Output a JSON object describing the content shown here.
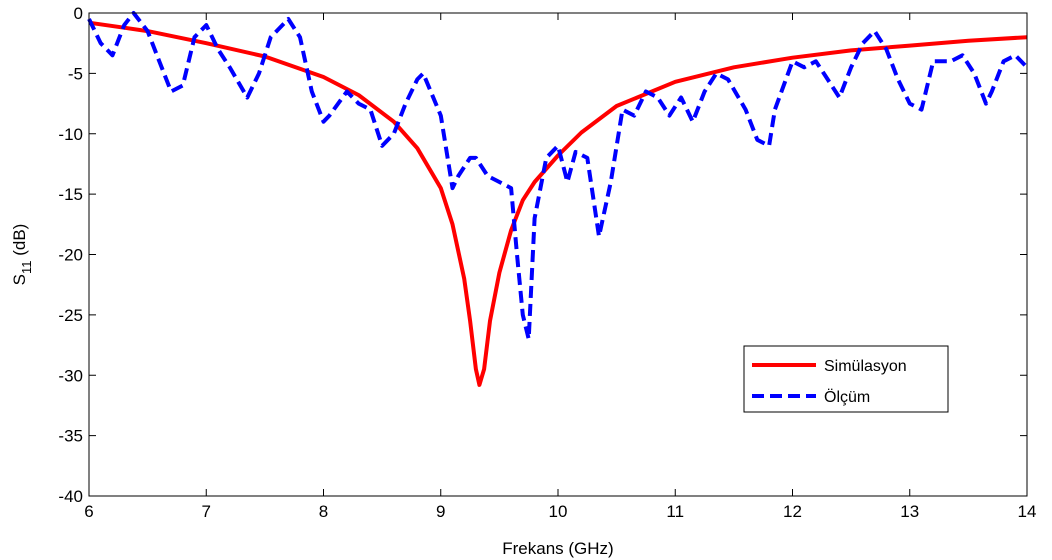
{
  "chart_data": {
    "type": "line",
    "xlabel": "Frekans (GHz)",
    "ylabel_main": "S",
    "ylabel_sub": "11",
    "ylabel_unit": " (dB)",
    "xlim": [
      6,
      14
    ],
    "ylim": [
      -40,
      0
    ],
    "xticks": [
      6,
      7,
      8,
      9,
      10,
      11,
      12,
      13,
      14
    ],
    "yticks": [
      0,
      -5,
      -10,
      -15,
      -20,
      -25,
      -30,
      -35,
      -40
    ],
    "grid": false,
    "legend_position": "lower-right",
    "series": [
      {
        "name": "Simülasyon",
        "color": "#ff0000",
        "style": "solid",
        "x": [
          6.0,
          6.5,
          7.0,
          7.5,
          8.0,
          8.3,
          8.6,
          8.8,
          9.0,
          9.1,
          9.2,
          9.25,
          9.3,
          9.33,
          9.37,
          9.42,
          9.5,
          9.6,
          9.7,
          9.8,
          10.0,
          10.2,
          10.5,
          11.0,
          11.5,
          12.0,
          12.5,
          13.0,
          13.5,
          14.0
        ],
        "y": [
          -0.8,
          -1.5,
          -2.5,
          -3.6,
          -5.3,
          -6.8,
          -9.0,
          -11.2,
          -14.5,
          -17.5,
          -22.0,
          -25.5,
          -29.5,
          -30.8,
          -29.5,
          -25.5,
          -21.5,
          -18.0,
          -15.5,
          -14.0,
          -11.8,
          -9.9,
          -7.7,
          -5.7,
          -4.5,
          -3.7,
          -3.1,
          -2.7,
          -2.3,
          -2.0
        ]
      },
      {
        "name": "Ölçüm",
        "color": "#0000ff",
        "style": "dashed",
        "x": [
          6.0,
          6.1,
          6.2,
          6.3,
          6.38,
          6.5,
          6.6,
          6.7,
          6.8,
          6.9,
          7.0,
          7.1,
          7.2,
          7.35,
          7.45,
          7.55,
          7.7,
          7.8,
          7.9,
          8.0,
          8.05,
          8.2,
          8.3,
          8.4,
          8.5,
          8.6,
          8.7,
          8.8,
          8.85,
          9.0,
          9.1,
          9.15,
          9.25,
          9.3,
          9.4,
          9.5,
          9.6,
          9.65,
          9.7,
          9.75,
          9.8,
          9.9,
          10.0,
          10.08,
          10.15,
          10.25,
          10.35,
          10.45,
          10.55,
          10.65,
          10.75,
          10.85,
          10.95,
          11.05,
          11.15,
          11.25,
          11.35,
          11.45,
          11.6,
          11.7,
          11.8,
          11.85,
          12.0,
          12.1,
          12.2,
          12.3,
          12.4,
          12.5,
          12.6,
          12.7,
          12.8,
          12.9,
          13.0,
          13.1,
          13.2,
          13.35,
          13.45,
          13.55,
          13.65,
          13.7,
          13.8,
          13.9,
          14.0
        ],
        "y": [
          -0.5,
          -2.5,
          -3.5,
          -1.0,
          0.0,
          -1.5,
          -4.0,
          -6.5,
          -6.0,
          -2.0,
          -1.0,
          -3.0,
          -4.5,
          -7.0,
          -5.0,
          -2.0,
          -0.5,
          -2.0,
          -6.5,
          -9.0,
          -8.5,
          -6.5,
          -7.5,
          -8.0,
          -11.0,
          -10.0,
          -7.5,
          -5.5,
          -5.0,
          -8.5,
          -14.5,
          -13.5,
          -12.0,
          -12.0,
          -13.5,
          -14.0,
          -14.5,
          -20.0,
          -25.0,
          -27.0,
          -17.0,
          -12.0,
          -11.0,
          -14.0,
          -11.5,
          -12.0,
          -18.5,
          -14.0,
          -8.0,
          -8.5,
          -6.5,
          -7.0,
          -8.5,
          -7.0,
          -9.0,
          -6.5,
          -5.0,
          -5.5,
          -8.0,
          -10.5,
          -11.0,
          -8.0,
          -4.0,
          -4.5,
          -4.0,
          -5.5,
          -7.0,
          -4.5,
          -2.5,
          -1.5,
          -3.0,
          -5.5,
          -7.5,
          -8.0,
          -4.0,
          -4.0,
          -3.5,
          -5.0,
          -7.5,
          -6.5,
          -4.0,
          -3.5,
          -4.5
        ]
      }
    ]
  }
}
